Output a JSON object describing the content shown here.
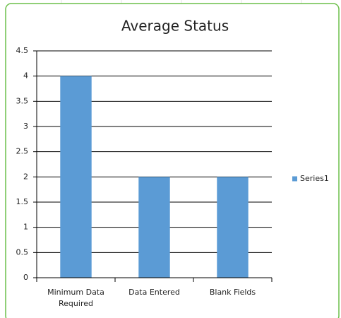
{
  "chart_data": {
    "type": "bar",
    "title": "Average Status",
    "categories": [
      "Minimum Data Required",
      "Data Entered",
      "Blank Fields"
    ],
    "series": [
      {
        "name": "Series1",
        "color": "#5b9bd5",
        "values": [
          4,
          2,
          2
        ]
      }
    ],
    "ylim": [
      0,
      4.5
    ],
    "yticks": [
      0,
      0.5,
      1,
      1.5,
      2,
      2.5,
      3,
      3.5,
      4,
      4.5
    ],
    "grid": true,
    "legend": "right"
  }
}
